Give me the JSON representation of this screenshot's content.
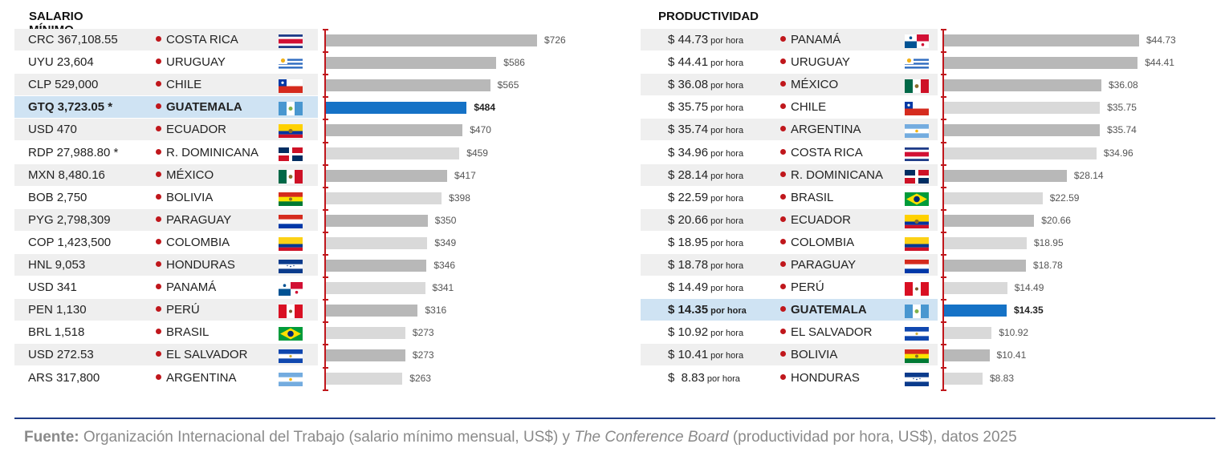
{
  "chart_data": [
    {
      "type": "bar",
      "title": "SALARIO MÍNIMO",
      "categories": [
        "COSTA RICA",
        "URUGUAY",
        "CHILE",
        "GUATEMALA",
        "ECUADOR",
        "R. DOMINICANA",
        "MÉXICO",
        "BOLIVIA",
        "PARAGUAY",
        "COLOMBIA",
        "HONDURAS",
        "PANAMÁ",
        "PERÚ",
        "BRASIL",
        "EL SALVADOR",
        "ARGENTINA"
      ],
      "local_values": [
        "CRC 367,108.55",
        "UYU 23,604",
        "CLP 529,000",
        "GTQ 3,723.05 *",
        "USD 470",
        "RDP 27,988.80 *",
        "MXN 8,480.16",
        "BOB 2,750",
        "PYG 2,798,309",
        "COP 1,423,500",
        "HNL 9,053",
        "USD 341",
        "PEN 1,130",
        "BRL 1,518",
        "USD 272.53",
        "ARS 317,800"
      ],
      "values": [
        726,
        586,
        565,
        484,
        470,
        459,
        417,
        398,
        350,
        349,
        346,
        341,
        316,
        273,
        273,
        263
      ],
      "value_labels": [
        "$726",
        "$586",
        "$565",
        "$484",
        "$470",
        "$459",
        "$417",
        "$398",
        "$350",
        "$349",
        "$346",
        "$341",
        "$316",
        "$273",
        "$273",
        "$263"
      ],
      "highlight": "GUATEMALA",
      "max": 726
    },
    {
      "type": "bar",
      "title": "PRODUCTIVIDAD",
      "categories": [
        "PANAMÁ",
        "URUGUAY",
        "MÉXICO",
        "CHILE",
        "ARGENTINA",
        "COSTA RICA",
        "R. DOMINICANA",
        "BRASIL",
        "ECUADOR",
        "COLOMBIA",
        "PARAGUAY",
        "PERÚ",
        "GUATEMALA",
        "EL SALVADOR",
        "BOLIVIA",
        "HONDURAS"
      ],
      "local_values": [
        "$ 44.73",
        "$ 44.41",
        "$ 36.08",
        "$ 35.75",
        "$ 35.74",
        "$ 34.96",
        "$ 28.14",
        "$ 22.59",
        "$ 20.66",
        "$ 18.95",
        "$ 18.78",
        "$ 14.49",
        "$ 14.35",
        "$ 10.92",
        "$ 10.41",
        "$  8.83"
      ],
      "unit_suffix": "por hora",
      "values": [
        44.73,
        44.41,
        36.08,
        35.75,
        35.74,
        34.96,
        28.14,
        22.59,
        20.66,
        18.95,
        18.78,
        14.49,
        14.35,
        10.92,
        10.41,
        8.83
      ],
      "value_labels": [
        "$44.73",
        "$44.41",
        "$36.08",
        "$35.75",
        "$35.74",
        "$34.96",
        "$28.14",
        "$22.59",
        "$20.66",
        "$18.95",
        "$18.78",
        "$14.49",
        "$14.35",
        "$10.92",
        "$10.41",
        "$8.83"
      ],
      "highlight": "GUATEMALA",
      "max": 44.73
    }
  ],
  "colors": {
    "highlight_bar": "#1572c6",
    "highlight_row": "#cfe3f3",
    "dark_bar": "#b8b8b8",
    "light_bar": "#d9d9d9",
    "row_shade": "#efefef",
    "axis": "#c0171c",
    "dot": "#c0171c"
  },
  "flags": {
    "COSTA RICA": "costa-rica-flag-icon",
    "URUGUAY": "uruguay-flag-icon",
    "CHILE": "chile-flag-icon",
    "GUATEMALA": "guatemala-flag-icon",
    "ECUADOR": "ecuador-flag-icon",
    "R. DOMINICANA": "dominican-republic-flag-icon",
    "MÉXICO": "mexico-flag-icon",
    "BOLIVIA": "bolivia-flag-icon",
    "PARAGUAY": "paraguay-flag-icon",
    "COLOMBIA": "colombia-flag-icon",
    "HONDURAS": "honduras-flag-icon",
    "PANAMÁ": "panama-flag-icon",
    "PERÚ": "peru-flag-icon",
    "BRASIL": "brazil-flag-icon",
    "EL SALVADOR": "el-salvador-flag-icon",
    "ARGENTINA": "argentina-flag-icon"
  },
  "footer": {
    "label": "Fuente:",
    "text_a": " Organización Internacional del Trabajo (salario mínimo mensual, US$) y ",
    "text_italic": "The Conference Board",
    "text_b": " (productividad por hora, US$), datos 2025"
  }
}
